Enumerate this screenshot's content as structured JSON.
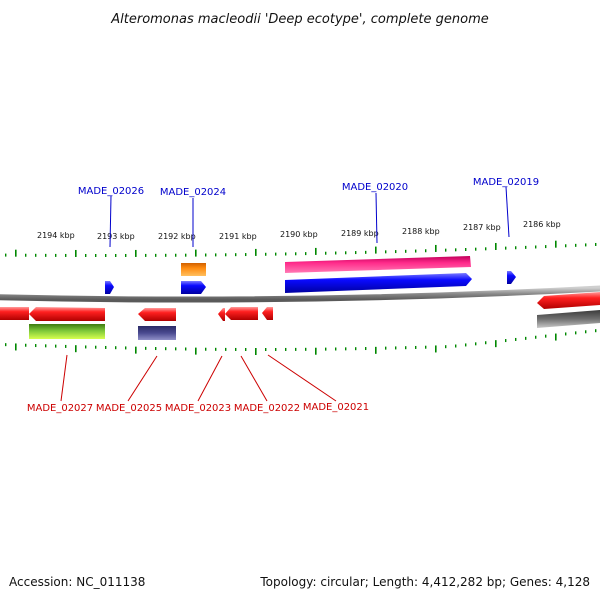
{
  "title": "Alteromonas macleodii 'Deep ecotype', complete genome",
  "footer": {
    "accession": "Accession: NC_011138",
    "summary": "Topology: circular; Length: 4,412,282 bp; Genes: 4,128"
  },
  "scale_labels": [
    "2194 kbp",
    "2193 kbp",
    "2192 kbp",
    "2191 kbp",
    "2190 kbp",
    "2189 kbp",
    "2188 kbp",
    "2187 kbp",
    "2186 kbp"
  ],
  "genes_top": [
    {
      "label": "MADE_02026",
      "color": "#0000cc"
    },
    {
      "label": "MADE_02024",
      "color": "#0000cc"
    },
    {
      "label": "MADE_02020",
      "color": "#0000cc"
    },
    {
      "label": "MADE_02019",
      "color": "#0000cc"
    }
  ],
  "genes_bottom": [
    {
      "label": "MADE_02027",
      "color": "#cc0000"
    },
    {
      "label": "MADE_02025",
      "color": "#cc0000"
    },
    {
      "label": "MADE_02023",
      "color": "#cc0000"
    },
    {
      "label": "MADE_02022",
      "color": "#cc0000"
    },
    {
      "label": "MADE_02021",
      "color": "#cc0000"
    }
  ],
  "colors": {
    "forward_cds": "#0000ee",
    "reverse_cds": "#ee0000",
    "backbone": "#888888",
    "ticks": "#008800",
    "pink_feature": "#ee2288",
    "orange_feature": "#ff8800",
    "green_feature": "#66bb22",
    "purple_feature": "#444488",
    "gray_feature": "#666666"
  }
}
